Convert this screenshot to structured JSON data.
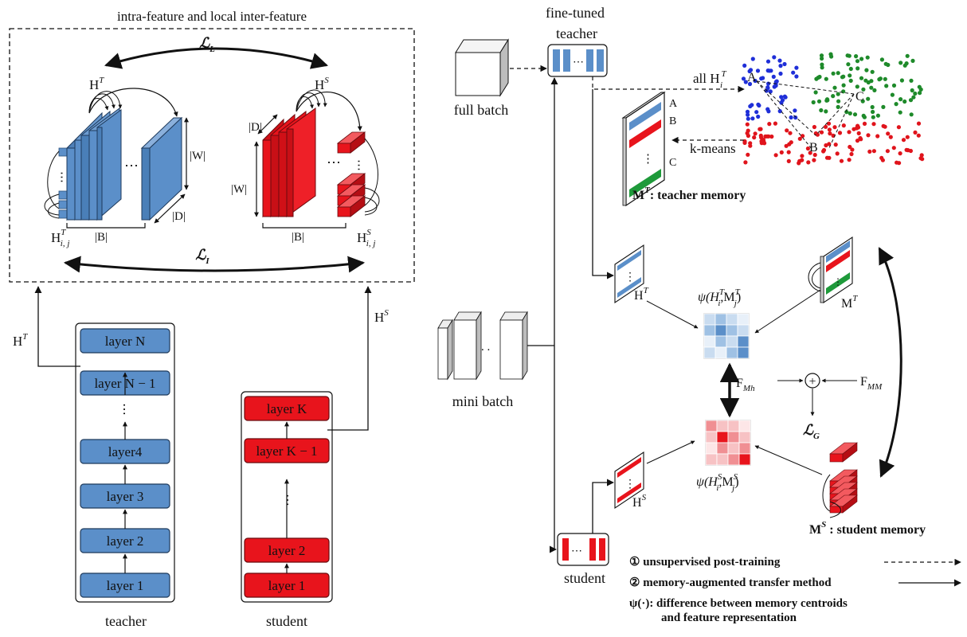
{
  "left_box": {
    "title": "intra-feature and local inter-feature",
    "loss_top": "ℒ",
    "loss_top_sub": "L",
    "loss_bottom": "ℒ",
    "loss_bottom_sub": "I",
    "teacher_H": "H",
    "teacher_H_sup": "T",
    "student_H": "H",
    "student_H_sup": "S",
    "dim_W": "|W|",
    "dim_D": "|D|",
    "dim_B": "|B|",
    "teacher_Hij": "H",
    "teacher_Hij_sup": "T",
    "teacher_Hij_sub": "i, j",
    "student_Hij": "H",
    "student_Hij_sup": "S",
    "student_Hij_sub": "i, j",
    "ellipsis": "⋯"
  },
  "teacher_stack": {
    "caption": "teacher",
    "out_H": "H",
    "out_H_sup": "T",
    "layers": [
      "layer N",
      "layer N − 1",
      "layer4",
      "layer 3",
      "layer 2",
      "layer 1"
    ]
  },
  "student_stack": {
    "caption": "student",
    "out_H": "H",
    "out_H_sup": "S",
    "layers": [
      "layer K",
      "layer K − 1",
      "layer 2",
      "layer 1"
    ]
  },
  "right": {
    "full_batch": "full batch",
    "mini_batch": "mini batch",
    "fine_tuned_1": "fine-tuned",
    "fine_tuned_2": "teacher",
    "student_label": "student",
    "all_H": "all H",
    "all_H_sup": "T",
    "all_H_sub": "i",
    "k_means": "k-means",
    "cluster_A": "A",
    "cluster_B": "B",
    "cluster_C": "C",
    "teacher_memory": "M",
    "teacher_memory_sup": "T",
    "teacher_memory_rest": ": teacher memory",
    "student_memory": "M",
    "student_memory_sup": "S",
    "student_memory_rest": " : student memory",
    "HT": "H",
    "HT_sup": "T",
    "HS": "H",
    "HS_sup": "S",
    "MT": "M",
    "MT_sup": "T",
    "psi_T": "ψ(H",
    "psi_T_sup1": "T",
    "psi_T_sub1": "i",
    "psi_T_mid": ",M",
    "psi_T_sup2": "T",
    "psi_T_sub2": "j",
    "psi_T_end": ")",
    "psi_S": "ψ(H",
    "psi_S_sup1": "S",
    "psi_S_sub1": "i",
    "psi_S_mid": ",M",
    "psi_S_sup2": "S",
    "psi_S_sub2": "j",
    "psi_S_end": ")",
    "F_Mh": "F",
    "F_Mh_sub": "Mh",
    "F_MM": "F",
    "F_MM_sub": "MM",
    "loss_G": "ℒ",
    "loss_G_sub": "G",
    "plus": "+"
  },
  "legend": {
    "item1": "① unsupervised post-training",
    "item2": "② memory-augmented transfer method",
    "item3_a": "ψ(·): difference between memory centroids",
    "item3_b": "and feature representation"
  },
  "colors": {
    "blue": "#5b8fc9",
    "blue_dark": "#3d6fa8",
    "red": "#e8141c",
    "red_dark": "#b50e14",
    "green": "#1e9a3a",
    "dot_blue": "#1f2fd8",
    "dot_green": "#1e8a2a",
    "dot_red": "#e0141c"
  }
}
